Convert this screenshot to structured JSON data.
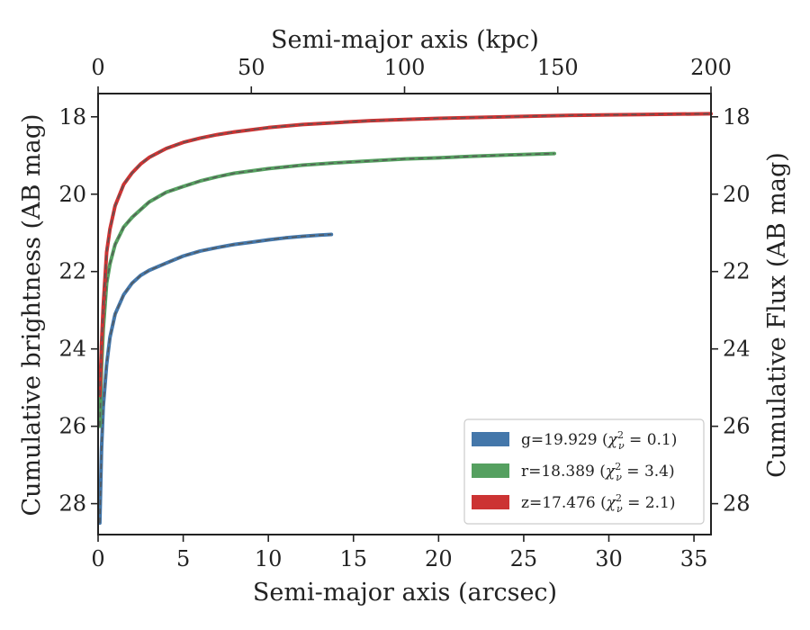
{
  "chart_data": {
    "type": "line",
    "xlabel": "Semi-major axis (arcsec)",
    "top_xlabel": "Semi-major axis (kpc)",
    "ylabel": "Cumulative brightness (AB mag)",
    "right_ylabel": "Cumulative Flux (AB mag)",
    "xlim": [
      0,
      36
    ],
    "top_xlim": [
      0,
      200
    ],
    "ylim": [
      28.8,
      17.4
    ],
    "y_inverted": true,
    "x_ticks": [
      "0",
      "5",
      "10",
      "15",
      "20",
      "25",
      "30",
      "35"
    ],
    "top_x_ticks": [
      "0",
      "50",
      "100",
      "150",
      "200"
    ],
    "y_ticks": [
      "18",
      "20",
      "22",
      "24",
      "26",
      "28"
    ],
    "right_y_ticks": [
      "18",
      "20",
      "22",
      "24",
      "26",
      "28"
    ],
    "grid": false,
    "legend_position": "lower-right",
    "series": [
      {
        "name": "g=19.929 (χ²ᵥ = 0.1)",
        "legend_text": "g=19.929 (",
        "chi": "0.1",
        "color": "#4477aa",
        "x": [
          0.1,
          0.2,
          0.3,
          0.5,
          0.7,
          1.0,
          1.5,
          2.0,
          2.5,
          3.0,
          4.0,
          5.0,
          6.0,
          7.0,
          8.0,
          9.0,
          10.0,
          11.0,
          12.0,
          13.0,
          13.7
        ],
        "y": [
          28.5,
          26.6,
          25.5,
          24.4,
          23.7,
          23.1,
          22.6,
          22.3,
          22.1,
          21.97,
          21.78,
          21.6,
          21.47,
          21.38,
          21.3,
          21.24,
          21.18,
          21.13,
          21.09,
          21.06,
          21.04
        ]
      },
      {
        "name": "r=18.389 (χ²ᵥ = 3.4)",
        "legend_text": "r=18.389 (",
        "chi": "3.4",
        "color": "#55a060",
        "x": [
          0.1,
          0.2,
          0.3,
          0.5,
          0.7,
          1.0,
          1.5,
          2.0,
          2.5,
          3.0,
          4.0,
          5.0,
          6.0,
          7.0,
          8.0,
          10.0,
          12.0,
          14.0,
          16.0,
          18.0,
          20.0,
          22.0,
          24.0,
          26.0,
          26.8
        ],
        "y": [
          26.0,
          24.5,
          23.5,
          22.3,
          21.8,
          21.3,
          20.85,
          20.6,
          20.4,
          20.2,
          19.95,
          19.8,
          19.66,
          19.55,
          19.46,
          19.34,
          19.25,
          19.19,
          19.14,
          19.09,
          19.06,
          19.02,
          18.99,
          18.96,
          18.95
        ]
      },
      {
        "name": "z=17.476 (χ²ᵥ = 2.1)",
        "legend_text": "z=17.476 (",
        "chi": "2.1",
        "color": "#cc3333",
        "x": [
          0.1,
          0.2,
          0.3,
          0.5,
          0.7,
          1.0,
          1.5,
          2.0,
          2.5,
          3.0,
          4.0,
          5.0,
          6.0,
          7.0,
          8.0,
          10.0,
          12.0,
          14.0,
          16.0,
          18.0,
          20.0,
          22.0,
          24.0,
          26.0,
          28.0,
          30.0,
          32.0,
          34.0,
          36.0
        ],
        "y": [
          25.2,
          23.9,
          22.9,
          21.5,
          20.9,
          20.3,
          19.75,
          19.45,
          19.22,
          19.05,
          18.82,
          18.66,
          18.55,
          18.46,
          18.39,
          18.28,
          18.2,
          18.15,
          18.1,
          18.07,
          18.04,
          18.02,
          18.0,
          17.98,
          17.96,
          17.95,
          17.94,
          17.93,
          17.92
        ]
      }
    ]
  }
}
